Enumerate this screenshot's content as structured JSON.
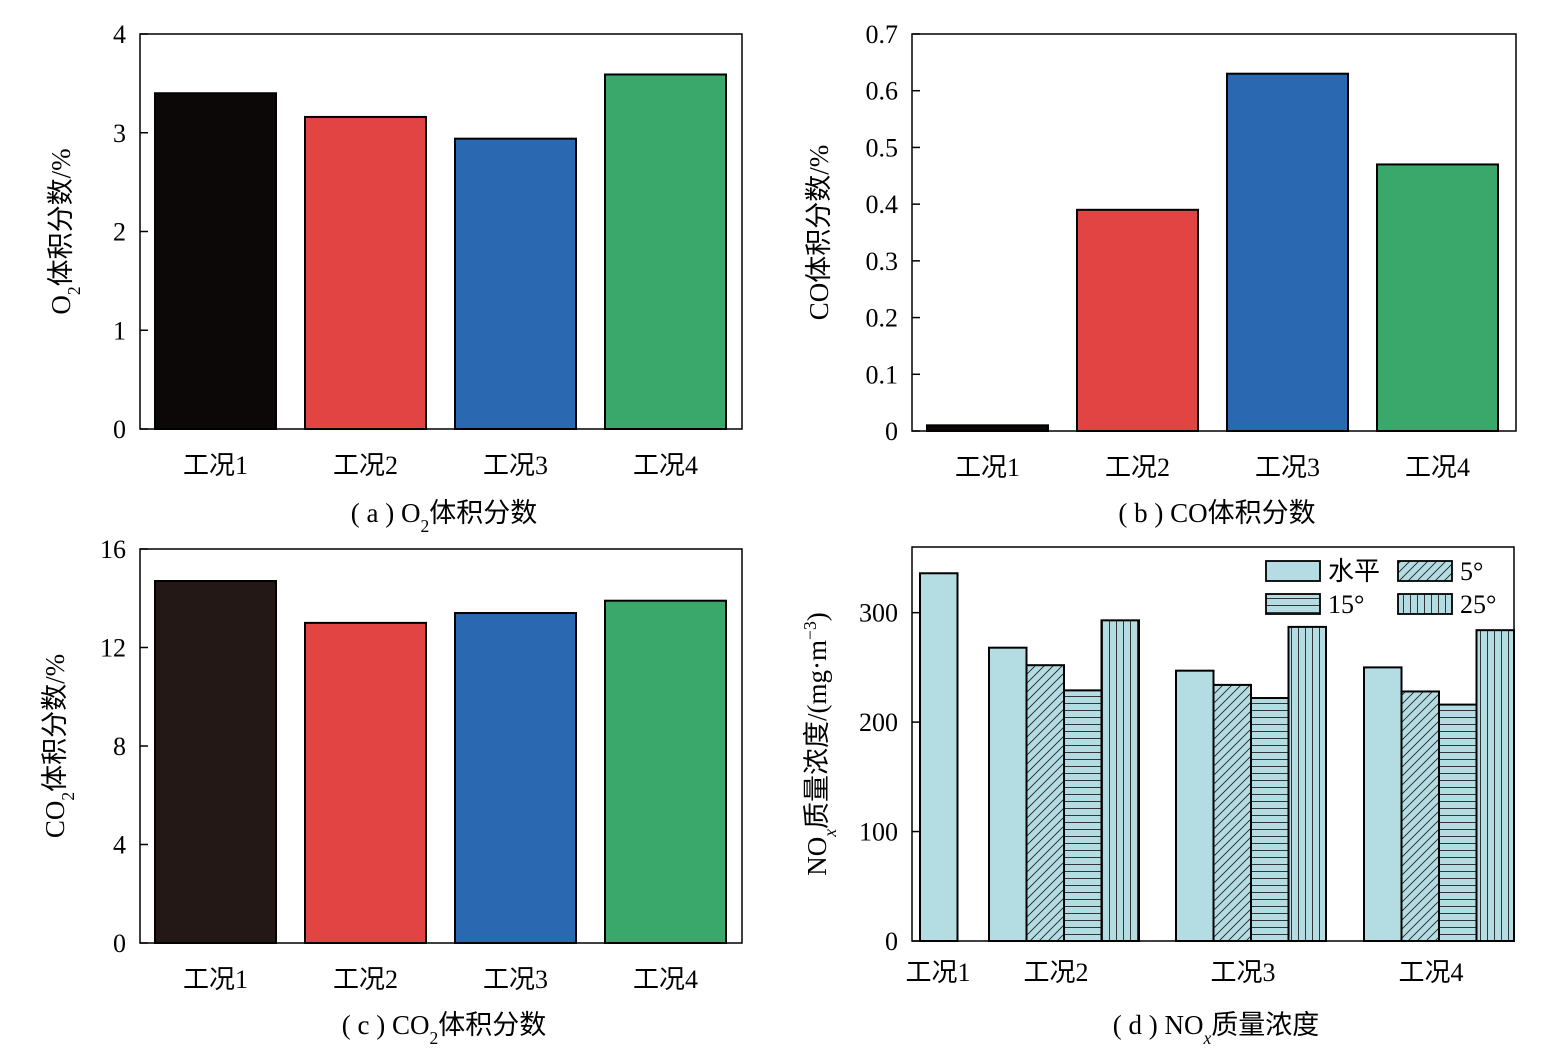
{
  "chart_data": [
    {
      "id": "a",
      "type": "bar",
      "categories": [
        "工况1",
        "工况2",
        "工况3",
        "工况4"
      ],
      "values": [
        3.4,
        3.16,
        2.94,
        3.59
      ],
      "colors": [
        "#0d0808",
        "#e24343",
        "#2a68b1",
        "#3aa86b"
      ],
      "ylabel": "O2体积分数/%",
      "ylim": [
        0,
        4
      ],
      "yticks": [
        0,
        1,
        2,
        3,
        4
      ],
      "caption": "( a ) O2体积分数"
    },
    {
      "id": "b",
      "type": "bar",
      "categories": [
        "工况1",
        "工况2",
        "工况3",
        "工况4"
      ],
      "values": [
        0.01,
        0.39,
        0.63,
        0.47
      ],
      "colors": [
        "#0d0808",
        "#e24343",
        "#2a68b1",
        "#3aa86b"
      ],
      "ylabel": "CO体积分数/%",
      "ylim": [
        0,
        0.7
      ],
      "yticks": [
        "0",
        "0.1",
        "0.2",
        "0.3",
        "0.4",
        "0.5",
        "0.6",
        "0.7"
      ],
      "caption": "( b ) CO体积分数"
    },
    {
      "id": "c",
      "type": "bar",
      "categories": [
        "工况1",
        "工况2",
        "工况3",
        "工况4"
      ],
      "values": [
        14.7,
        13.0,
        13.4,
        13.9
      ],
      "colors": [
        "#231816",
        "#e24343",
        "#2a68b1",
        "#3aa86b"
      ],
      "ylabel": "CO2体积分数/%",
      "ylim": [
        0,
        16
      ],
      "yticks": [
        0,
        4,
        8,
        12,
        16
      ],
      "caption": "( c ) CO2体积分数"
    },
    {
      "id": "d",
      "type": "bar",
      "categories": [
        "工况1",
        "工况2",
        "工况3",
        "工况4"
      ],
      "series": [
        {
          "name": "水平",
          "values": [
            336,
            268,
            247,
            250
          ],
          "pattern": "none"
        },
        {
          "name": "5°",
          "values": [
            null,
            252,
            234,
            228
          ],
          "pattern": "diagonal"
        },
        {
          "name": "15°",
          "values": [
            null,
            229,
            222,
            216
          ],
          "pattern": "horizontal"
        },
        {
          "name": "25°",
          "values": [
            null,
            293,
            287,
            284
          ],
          "pattern": "vertical"
        }
      ],
      "bar_color": "#b3dde3",
      "ylabel": "NOx质量浓度/(mg·m−3)",
      "ylim": [
        0,
        360
      ],
      "yticks": [
        0,
        100,
        200,
        300
      ],
      "legend_position": "top-right",
      "caption": "( d ) NOx质量浓度"
    }
  ]
}
